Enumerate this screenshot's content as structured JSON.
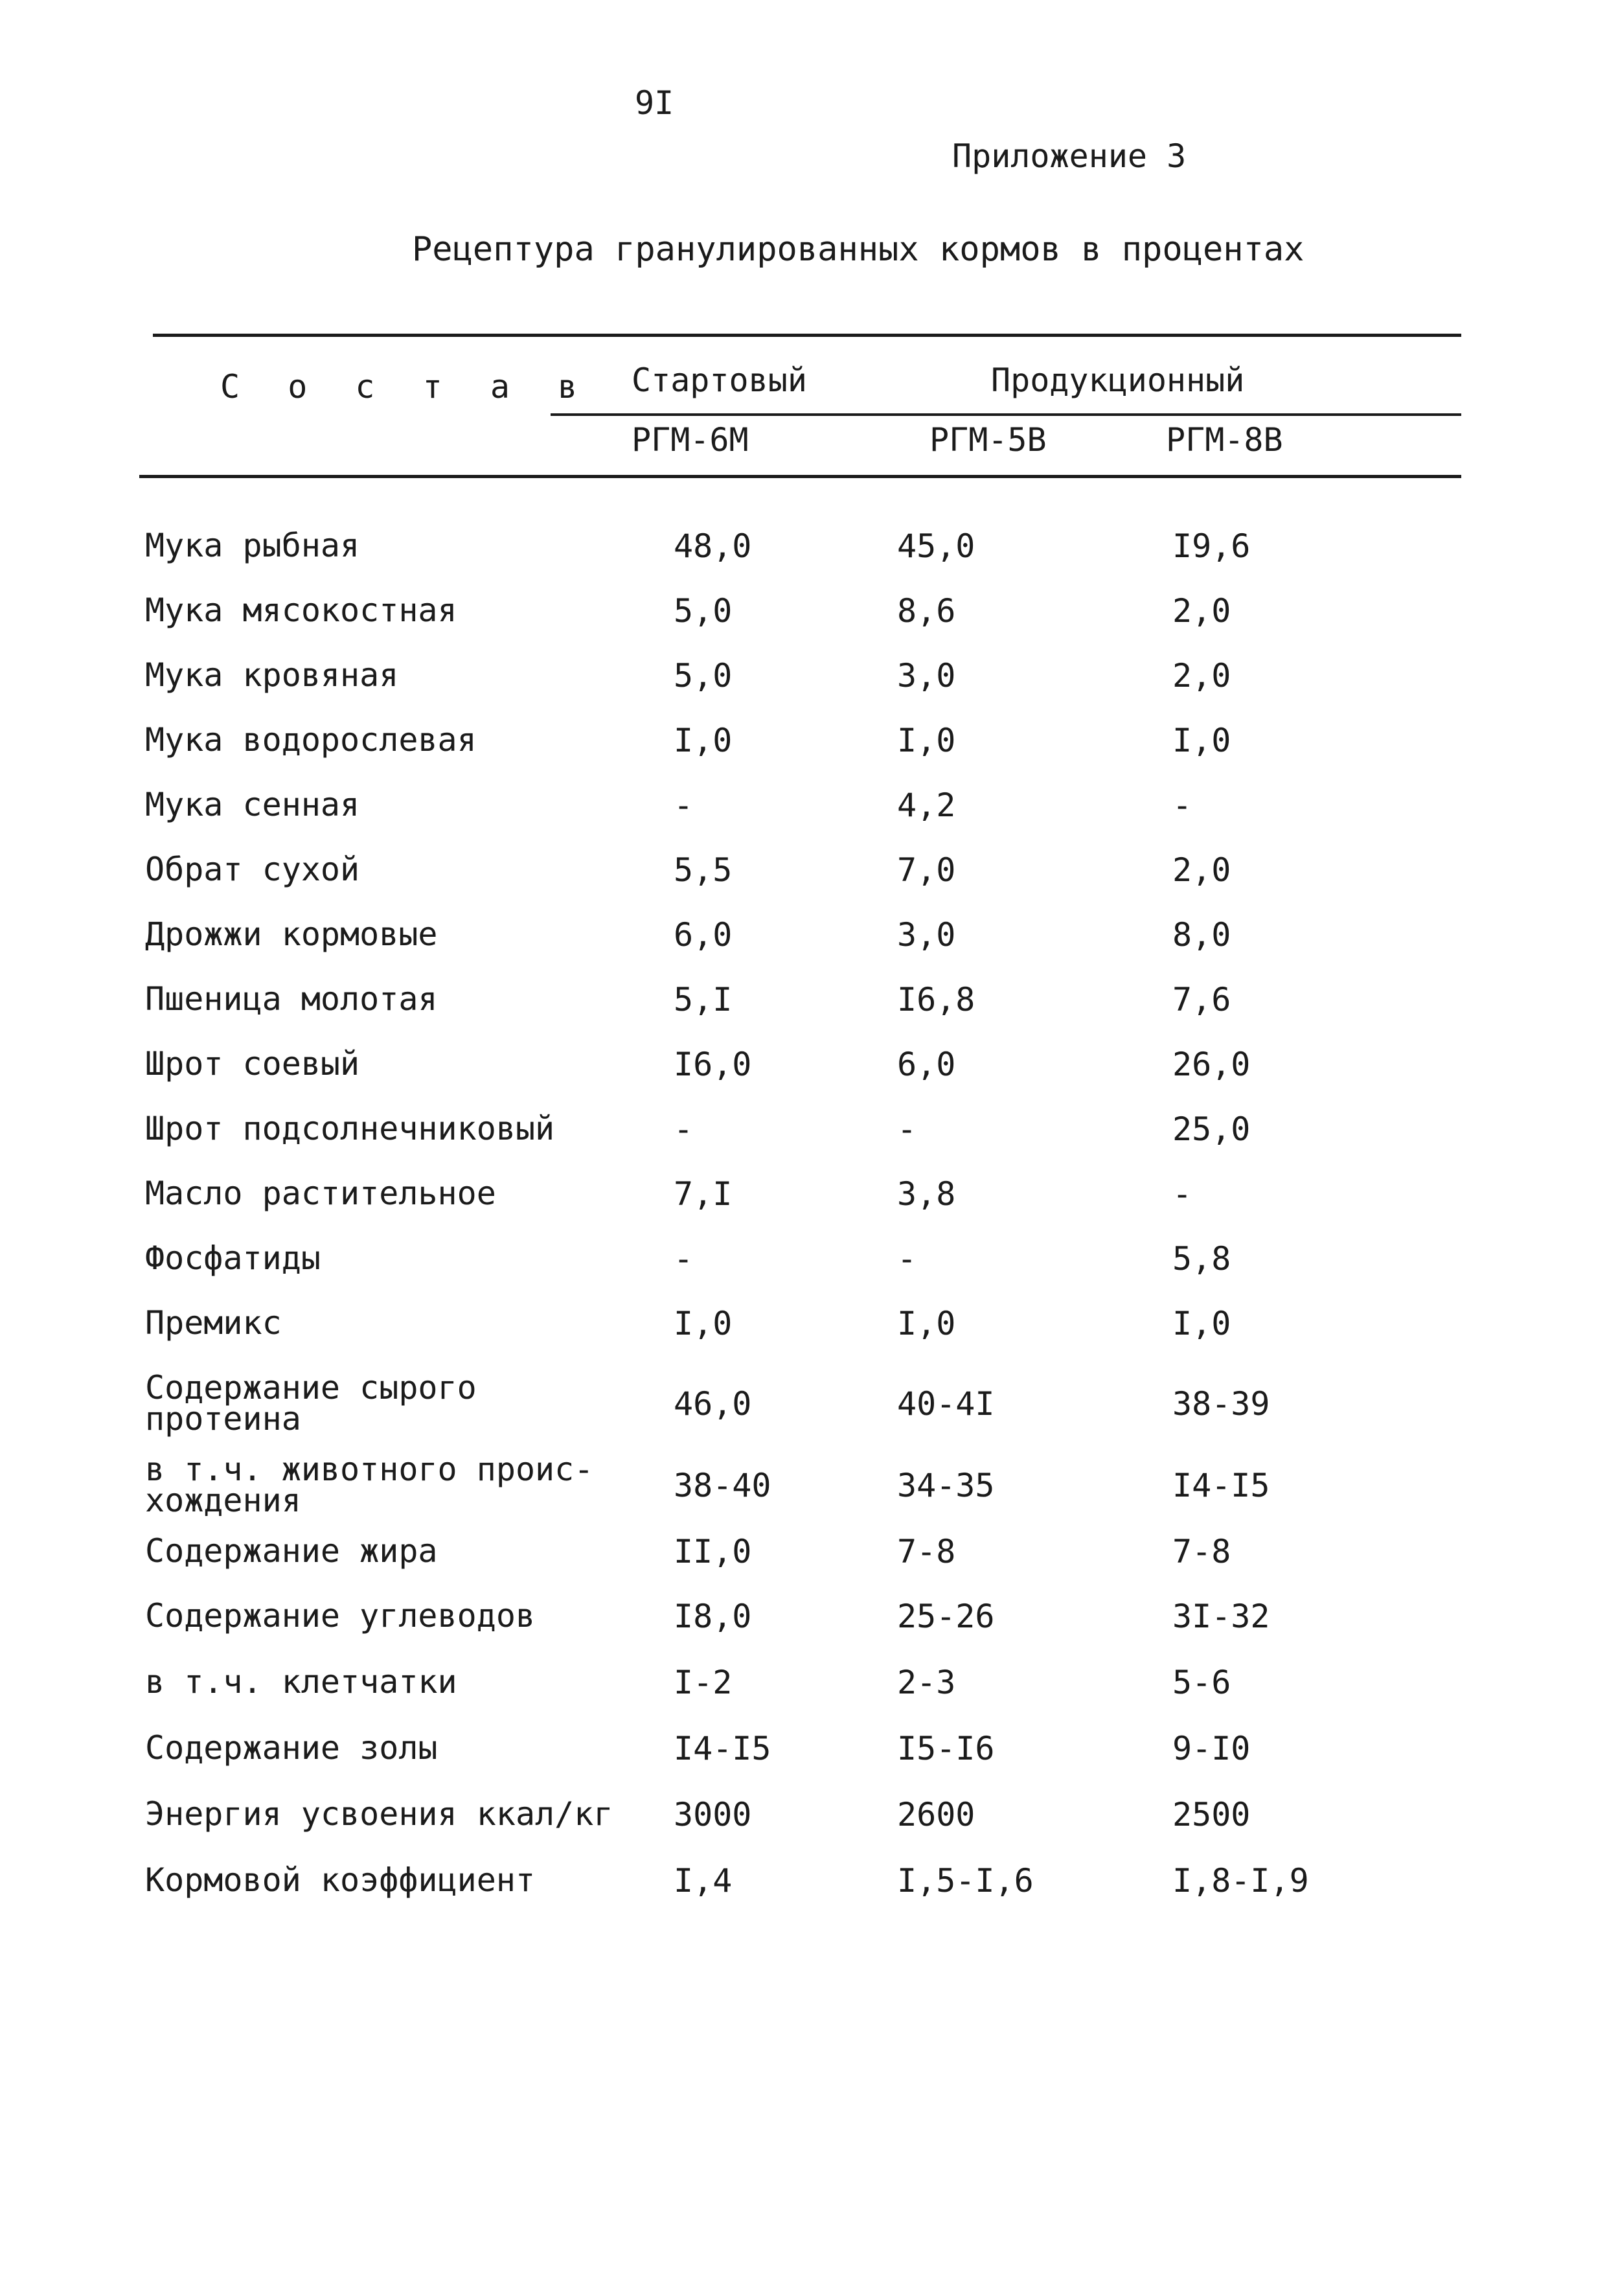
{
  "page_number": "9I",
  "appendix": "Приложение 3",
  "title": "Рецептура гранулированных кормов в процентах",
  "table": {
    "header": {
      "composition": "С о с т а в",
      "starter": "Стартовый",
      "production": "Продукционный",
      "col1": "РГМ-6М",
      "col2": "РГМ-5В",
      "col3": "РГМ-8В"
    },
    "rows": [
      {
        "label": "Мука рыбная",
        "v1": "48,0",
        "v2": "45,0",
        "v3": "I9,6"
      },
      {
        "label": "Мука мясокостная",
        "v1": "5,0",
        "v2": "8,6",
        "v3": "2,0"
      },
      {
        "label": "Мука кровяная",
        "v1": "5,0",
        "v2": "3,0",
        "v3": "2,0"
      },
      {
        "label": "Мука водорослевая",
        "v1": "I,0",
        "v2": "I,0",
        "v3": "I,0"
      },
      {
        "label": "Мука сенная",
        "v1": "-",
        "v2": "4,2",
        "v3": "-"
      },
      {
        "label": "Обрат сухой",
        "v1": "5,5",
        "v2": "7,0",
        "v3": "2,0"
      },
      {
        "label": "Дрожжи кормовые",
        "v1": "6,0",
        "v2": "3,0",
        "v3": "8,0"
      },
      {
        "label": "Пшеница молотая",
        "v1": "5,I",
        "v2": "I6,8",
        "v3": "7,6"
      },
      {
        "label": "Шрот соевый",
        "v1": "I6,0",
        "v2": "6,0",
        "v3": "26,0"
      },
      {
        "label": "Шрот подсолнечниковый",
        "v1": "-",
        "v2": "-",
        "v3": "25,0"
      },
      {
        "label": "Масло растительное",
        "v1": "7,I",
        "v2": "3,8",
        "v3": "-"
      },
      {
        "label": "Фосфатиды",
        "v1": "-",
        "v2": "-",
        "v3": "5,8"
      },
      {
        "label": "Премикс",
        "v1": "I,0",
        "v2": "I,0",
        "v3": "I,0"
      },
      {
        "label": "Содержание сырого",
        "label2": "протеина",
        "v1": "46,0",
        "v2": "40-4I",
        "v3": "38-39"
      },
      {
        "label": "в т.ч. животного проис-",
        "label2": "хождения",
        "v1": "38-40",
        "v2": "34-35",
        "v3": "I4-I5"
      },
      {
        "label": "Содержание жира",
        "v1": "II,0",
        "v2": "7-8",
        "v3": "7-8"
      },
      {
        "label": "Содержание углеводов",
        "v1": "I8,0",
        "v2": "25-26",
        "v3": "3I-32"
      },
      {
        "label": "в т.ч. клетчатки",
        "v1": "I-2",
        "v2": "2-3",
        "v3": "5-6"
      },
      {
        "label": "Содержание золы",
        "v1": "I4-I5",
        "v2": "I5-I6",
        "v3": "9-I0"
      },
      {
        "label": "Энергия усвоения ккал/кг",
        "v1": "3000",
        "v2": "2600",
        "v3": "2500"
      },
      {
        "label": "Кормовой коэффициент",
        "v1": "I,4",
        "v2": "I,5-I,6",
        "v3": "I,8-I,9"
      }
    ]
  }
}
